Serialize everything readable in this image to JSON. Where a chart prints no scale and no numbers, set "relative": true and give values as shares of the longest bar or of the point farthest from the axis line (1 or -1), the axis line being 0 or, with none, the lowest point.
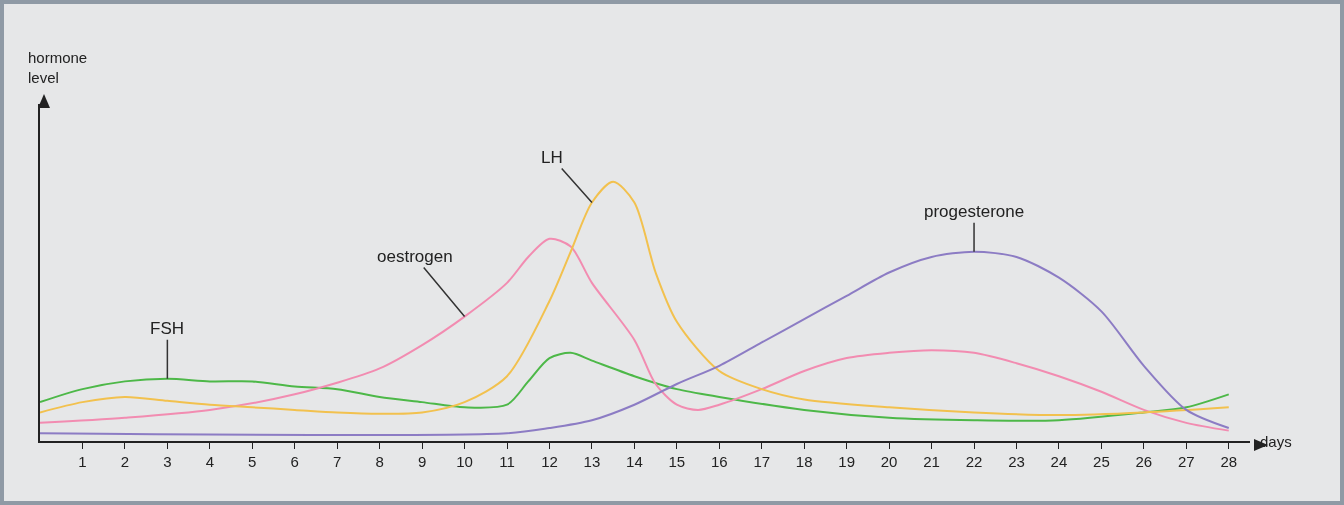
{
  "chart_data": {
    "type": "line",
    "relative": true,
    "xlabel": "days",
    "annotations": [
      "hormone level"
    ],
    "xlim": [
      0,
      28.5
    ],
    "xticks": [
      1,
      2,
      3,
      4,
      5,
      6,
      7,
      8,
      9,
      10,
      11,
      12,
      13,
      14,
      15,
      16,
      17,
      18,
      19,
      20,
      21,
      22,
      23,
      24,
      25,
      26,
      27,
      28
    ],
    "grid": false,
    "legend": false,
    "marker": "none",
    "line_style": "solid",
    "series": [
      {
        "name": "FSH",
        "color": "#4db848",
        "x": [
          0,
          1,
          2,
          3,
          4,
          5,
          6,
          7,
          8,
          9,
          10,
          11,
          11.5,
          12,
          12.5,
          13,
          14,
          15,
          16,
          18,
          20,
          22,
          24,
          26,
          27,
          28
        ],
        "values": [
          0.15,
          0.2,
          0.23,
          0.24,
          0.23,
          0.23,
          0.21,
          0.2,
          0.17,
          0.15,
          0.13,
          0.14,
          0.23,
          0.32,
          0.34,
          0.31,
          0.25,
          0.2,
          0.17,
          0.12,
          0.09,
          0.08,
          0.08,
          0.11,
          0.13,
          0.18
        ]
      },
      {
        "name": "oestrogen",
        "color": "#f28cb1",
        "x": [
          0,
          2,
          4,
          6,
          8,
          9,
          10,
          11,
          11.5,
          12,
          12.5,
          13,
          14,
          14.5,
          15,
          15.5,
          16,
          17,
          18,
          19,
          20,
          21,
          22,
          23,
          24,
          25,
          26,
          27,
          28
        ],
        "values": [
          0.07,
          0.09,
          0.12,
          0.18,
          0.28,
          0.37,
          0.48,
          0.61,
          0.71,
          0.78,
          0.75,
          0.61,
          0.39,
          0.22,
          0.14,
          0.12,
          0.14,
          0.2,
          0.27,
          0.32,
          0.34,
          0.35,
          0.34,
          0.3,
          0.25,
          0.19,
          0.12,
          0.07,
          0.04
        ]
      },
      {
        "name": "LH",
        "color": "#f2c14e",
        "x": [
          0,
          1,
          2,
          3,
          4,
          5,
          6,
          7,
          8,
          9,
          10,
          11,
          12,
          12.5,
          13,
          13.5,
          14,
          14.5,
          15,
          16,
          17,
          18,
          20,
          22,
          24,
          26,
          28
        ],
        "values": [
          0.11,
          0.15,
          0.17,
          0.155,
          0.14,
          0.13,
          0.12,
          0.11,
          0.105,
          0.11,
          0.15,
          0.25,
          0.54,
          0.73,
          0.92,
          1,
          0.92,
          0.65,
          0.46,
          0.27,
          0.2,
          0.16,
          0.13,
          0.11,
          0.1,
          0.11,
          0.13
        ]
      },
      {
        "name": "progesterone",
        "color": "#8c7cc4",
        "x": [
          0,
          11,
          12,
          13,
          14,
          15,
          16,
          17,
          18,
          19,
          20,
          21,
          22,
          23,
          24,
          25,
          26,
          27,
          28
        ],
        "values": [
          0.03,
          0.03,
          0.05,
          0.08,
          0.14,
          0.22,
          0.29,
          0.38,
          0.47,
          0.56,
          0.65,
          0.71,
          0.73,
          0.71,
          0.63,
          0.5,
          0.29,
          0.12,
          0.05
        ]
      }
    ]
  }
}
